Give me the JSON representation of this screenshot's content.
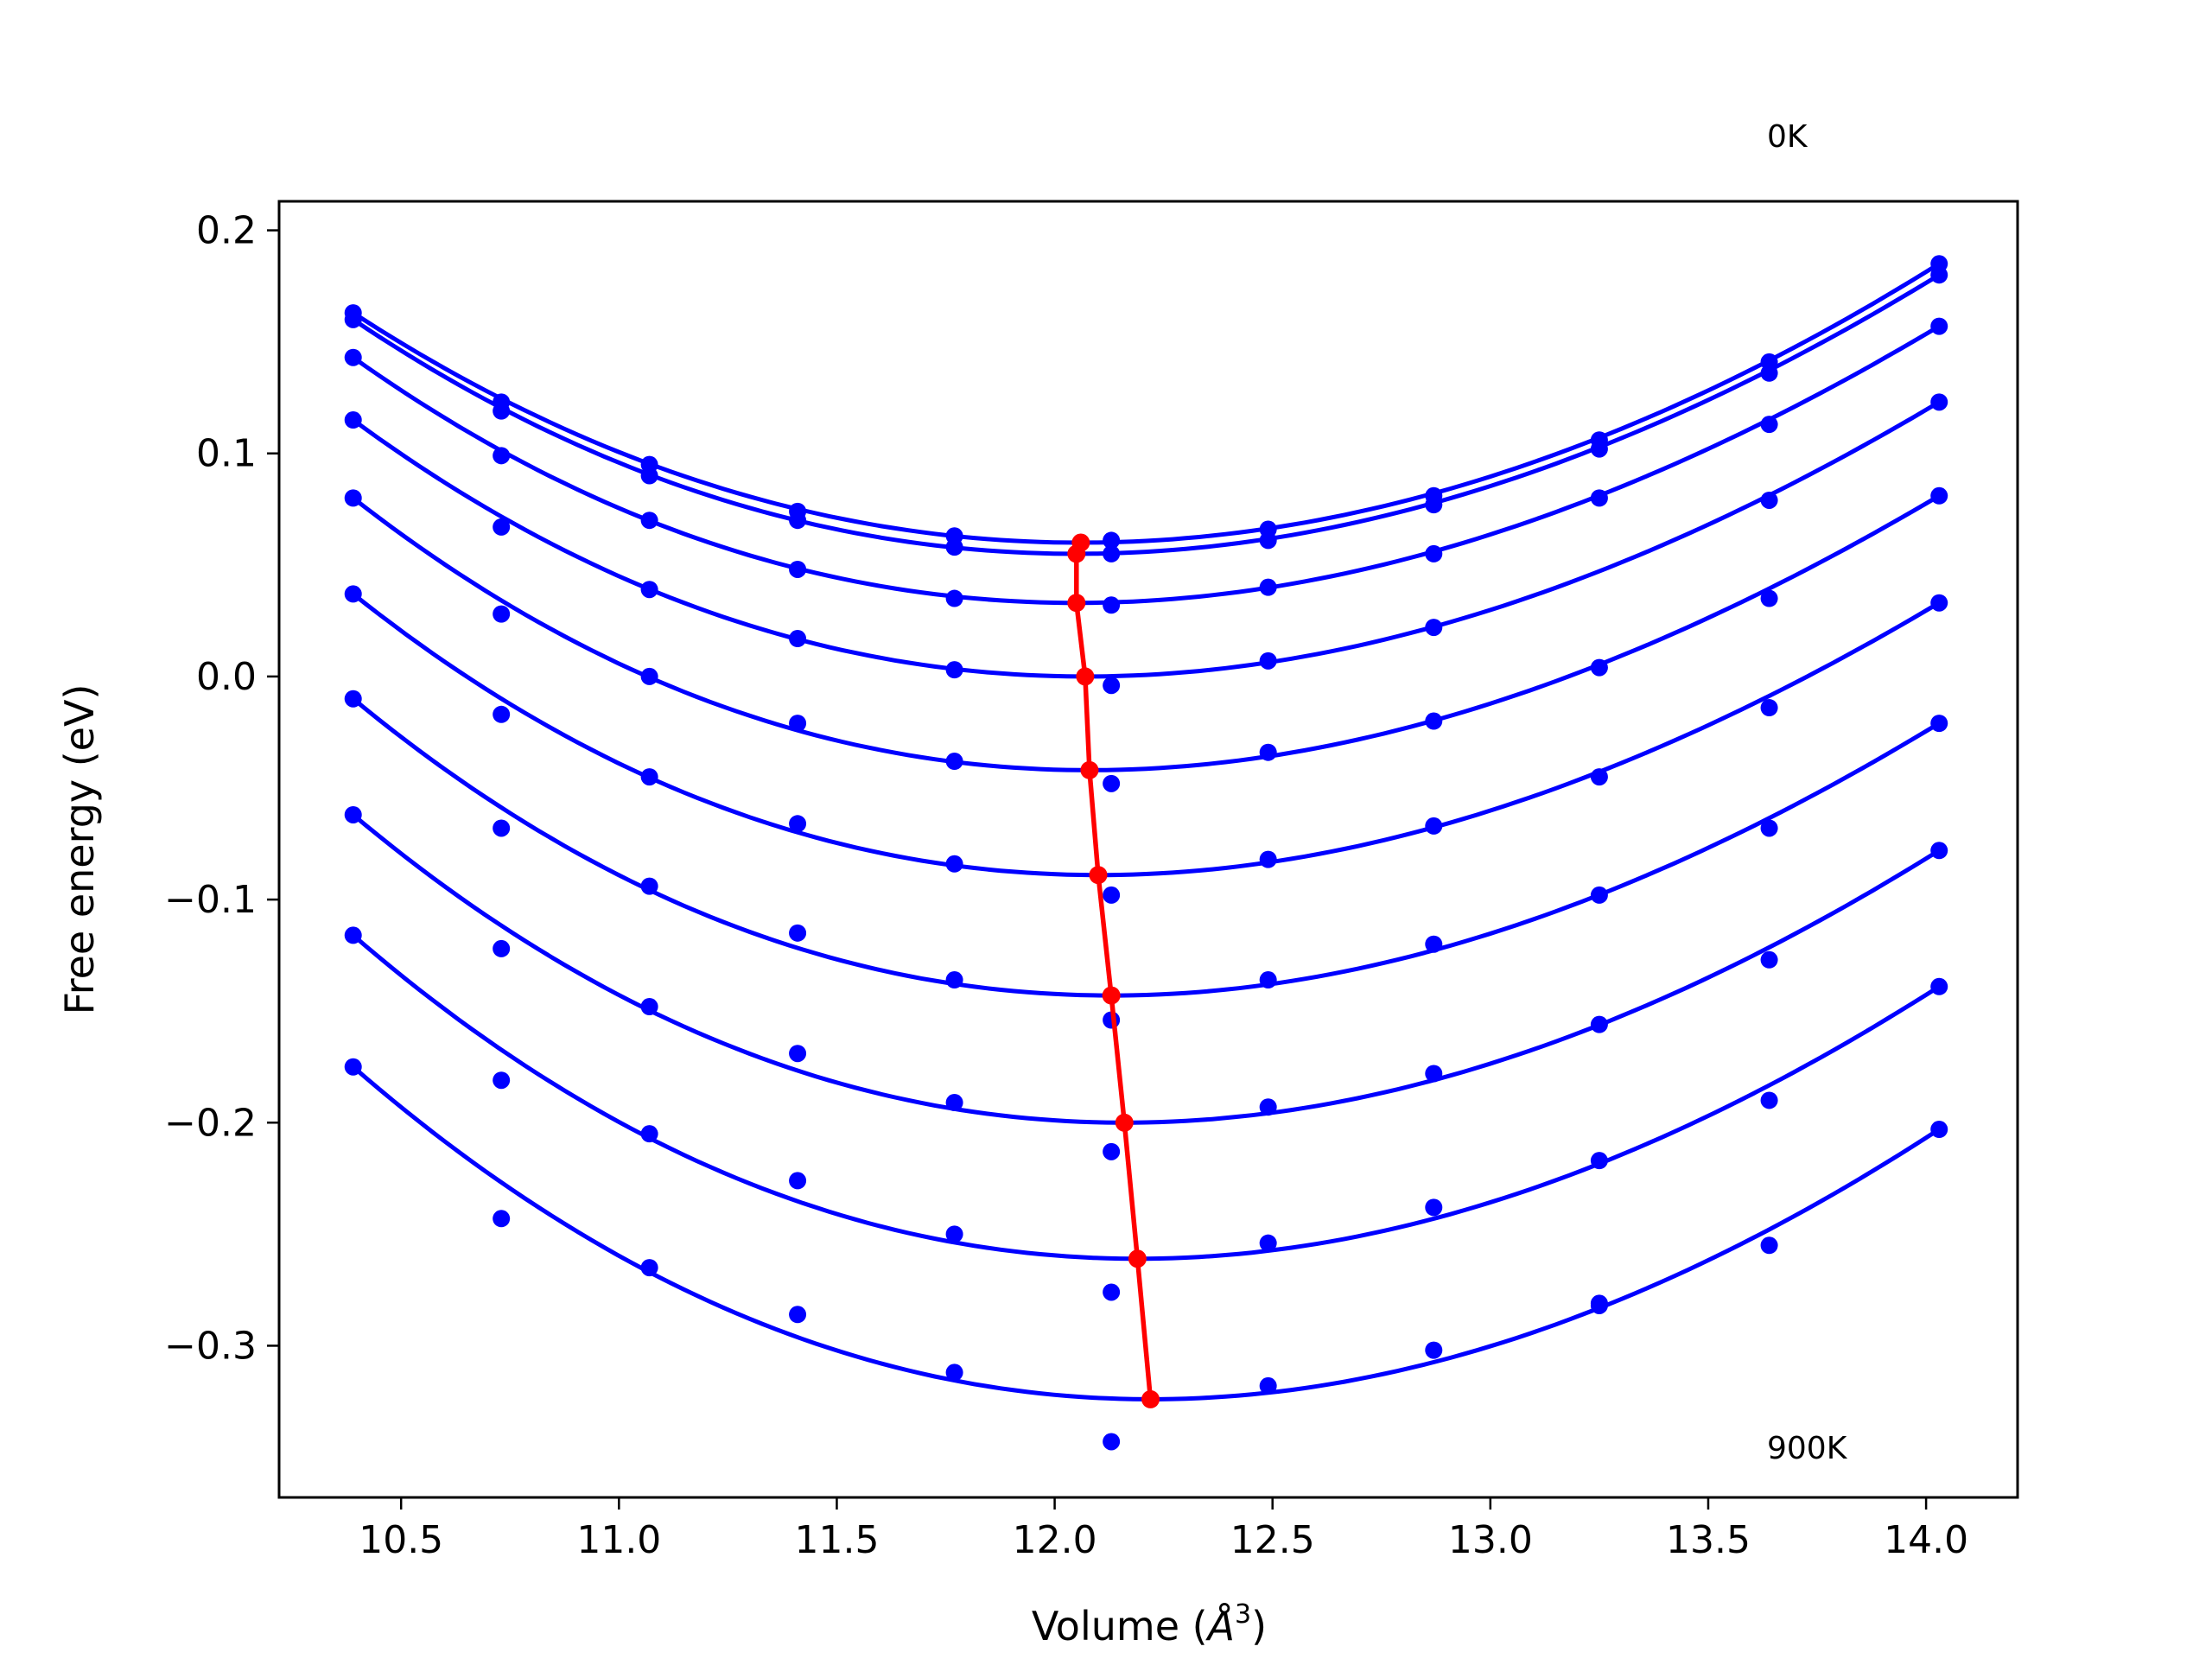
{
  "chart_data": {
    "type": "scatter",
    "title": "",
    "xlabel": "Volume (",
    "xlabel_unit": "Å",
    "xlabel_exp": "3",
    "xlabel_tail": ")",
    "ylabel": "Free energy (eV)",
    "xlim": [
      10.22,
      14.21
    ],
    "ylim": [
      -0.368,
      0.213
    ],
    "xticks": [
      10.5,
      11.0,
      11.5,
      12.0,
      12.5,
      13.0,
      13.5,
      14.0
    ],
    "xtick_labels": [
      "10.5",
      "11.0",
      "11.5",
      "12.0",
      "12.5",
      "13.0",
      "13.5",
      "14.0"
    ],
    "yticks": [
      0.2,
      0.1,
      0.0,
      -0.1,
      -0.2,
      -0.3
    ],
    "ytick_labels": [
      "0.2",
      "0.1",
      "0.0",
      "−0.1",
      "−0.2",
      "−0.3"
    ],
    "grid": false,
    "annotations": {
      "top": "0K",
      "bottom": "900K"
    },
    "colors": {
      "curves": "#0000ff",
      "minima": "#ff0000"
    },
    "volumes": [
      10.39,
      10.73,
      11.07,
      11.41,
      11.77,
      12.13,
      12.49,
      12.87,
      13.25,
      13.64,
      14.03
    ],
    "series": [
      {
        "points": [
          0.163,
          0.123,
          0.095,
          0.074,
          0.063,
          0.061,
          0.066,
          0.081,
          0.106,
          0.141,
          0.185
        ],
        "min_v": 12.06,
        "min_f": 0.06
      },
      {
        "points": [
          0.16,
          0.119,
          0.09,
          0.07,
          0.058,
          0.055,
          0.061,
          0.077,
          0.102,
          0.136,
          0.18
        ],
        "min_v": 12.05,
        "min_f": 0.055
      },
      {
        "points": [
          0.143,
          0.099,
          0.07,
          0.048,
          0.035,
          0.032,
          0.04,
          0.055,
          0.08,
          0.113,
          0.157
        ],
        "min_v": 12.05,
        "min_f": 0.033
      },
      {
        "points": [
          0.115,
          0.067,
          0.039,
          0.017,
          0.003,
          -0.004,
          0.007,
          0.022,
          0.004,
          0.079,
          0.123
        ],
        "min_v": 12.07,
        "min_f": 0.0
      },
      {
        "points": [
          0.08,
          0.028,
          0.0,
          -0.021,
          -0.038,
          -0.048,
          -0.034,
          -0.02,
          -0.045,
          0.035,
          0.081
        ],
        "min_v": 12.08,
        "min_f": -0.042
      },
      {
        "points": [
          0.037,
          -0.017,
          -0.045,
          -0.066,
          -0.084,
          -0.098,
          -0.082,
          -0.067,
          -0.098,
          -0.014,
          0.033
        ],
        "min_v": 12.1,
        "min_f": -0.089
      },
      {
        "points": [
          -0.01,
          -0.068,
          -0.094,
          -0.115,
          -0.136,
          -0.154,
          -0.136,
          -0.12,
          -0.156,
          -0.068,
          -0.021
        ],
        "min_v": 12.13,
        "min_f": -0.143
      },
      {
        "points": [
          -0.062,
          -0.122,
          -0.148,
          -0.169,
          -0.191,
          -0.213,
          -0.193,
          -0.178,
          -0.217,
          -0.127,
          -0.078
        ],
        "min_v": 12.16,
        "min_f": -0.2
      },
      {
        "points": [
          -0.116,
          -0.181,
          -0.205,
          -0.226,
          -0.25,
          -0.276,
          -0.254,
          -0.238,
          -0.281,
          -0.19,
          -0.139
        ],
        "min_v": 12.19,
        "min_f": -0.261
      },
      {
        "points": [
          -0.175,
          -0.243,
          -0.265,
          -0.286,
          -0.312,
          -0.343,
          -0.318,
          -0.302,
          -0.282,
          -0.255,
          -0.203
        ],
        "min_v": 12.22,
        "min_f": -0.324
      }
    ]
  }
}
